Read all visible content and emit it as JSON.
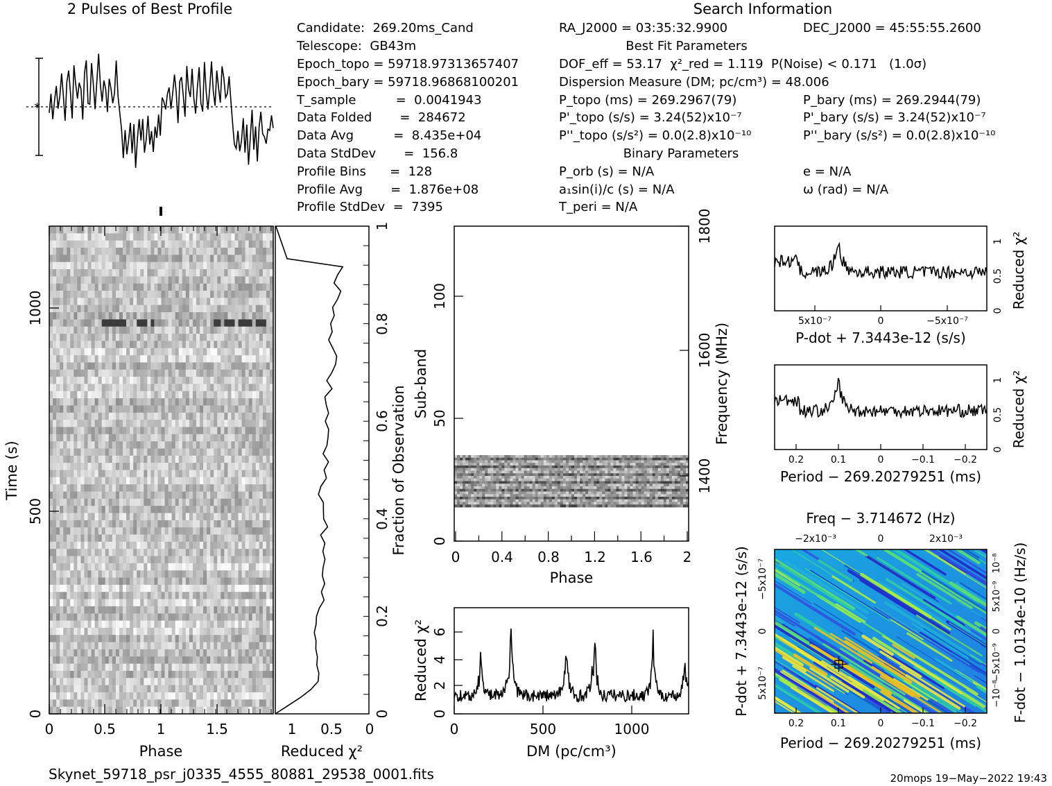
{
  "profile": {
    "title": "2 Pulses of Best Profile",
    "values": [
      0.05,
      0.12,
      -0.18,
      0.22,
      0.35,
      -0.05,
      0.28,
      0.6,
      0.15,
      -0.3,
      0.45,
      0.7,
      0.2,
      -0.15,
      0.9,
      0.4,
      0.1,
      0.65,
      0.3,
      -0.25,
      0.55,
      0.85,
      0.2,
      0.05,
      0.75,
      0.4,
      -0.1,
      0.5,
      0.95,
      0.3,
      0.15,
      0.6,
      0.25,
      -0.05,
      0.7,
      0.45,
      0.1,
      0.35,
      0.8,
      0.2,
      -0.2,
      -0.6,
      -0.9,
      -0.4,
      -1.0,
      -0.7,
      -0.3,
      -0.85,
      -0.5,
      -1.1,
      -0.6,
      -0.2,
      -0.75,
      -0.4,
      -0.95,
      -0.55,
      -0.15,
      -0.7,
      -0.45,
      -0.9,
      -0.35,
      -0.65,
      -0.2,
      -0.5
    ]
  },
  "info": {
    "search_title": "Search Information",
    "left_lines": [
      "Candidate:  269.20ms_Cand",
      "Telescope:  GB43m",
      "Epoch_topo = 59718.97313657407",
      "Epoch_bary = 59718.96868100201",
      "T_sample          =  0.0041943",
      "Data Folded       =  284672",
      "Data Avg          =  8.435e+04",
      "Data StdDev       =  156.8",
      "Profile Bins      =  128",
      "Profile Avg       =  1.876e+08",
      "Profile StdDev  =  7395"
    ],
    "ra": "RA_J2000 = 03:35:32.9900",
    "dec": "DEC_J2000 = 45:55:55.2600",
    "best_fit_title": "Best Fit Parameters",
    "dof_line": "DOF_eff = 53.17  χ²_red = 1.119  P(Noise) < 0.171   (1.0σ)",
    "dm_line": "Dispersion Measure (DM; pc/cm³) = 48.006",
    "p_topo": "P_topo (ms) =  269.2967(79)",
    "p_bary": "P_bary (ms) =  269.2944(79)",
    "pd_topo": "P'_topo (s/s) =  3.24(52)x10⁻⁷",
    "pd_bary": "P'_bary (s/s) =  3.24(52)x10⁻⁷",
    "pdd_topo": "P''_topo (s/s²) = 0.0(2.8)x10⁻¹⁰",
    "pdd_bary": "P''_bary (s/s²) = 0.0(2.8)x10⁻¹⁰",
    "binary_title": "Binary Parameters",
    "porb": "P_orb (s) = N/A",
    "a1sini": "a₁sin(i)/c (s) = N/A",
    "tperi": "T_peri = N/A",
    "ecc": "e = N/A",
    "omega": "ω (rad) = N/A"
  },
  "timephase": {
    "xlabel": "Phase",
    "ylabel": "Time (s)",
    "xticks": [
      "0",
      "0.5",
      "1",
      "1.5"
    ],
    "yticks": [
      "0",
      "500",
      "1000"
    ]
  },
  "time_chi": {
    "xlabel": "Reduced χ²",
    "ylabel": "Fraction of Observation",
    "xticks": [
      "1",
      "0.5",
      "0"
    ],
    "yticks": [
      "0",
      "0.2",
      "0.4",
      "0.6",
      "0.8",
      "1"
    ]
  },
  "subband": {
    "xlabel": "Phase",
    "ylabel": "Sub-band",
    "y2label": "Frequency (MHz)",
    "xticks": [
      "0",
      "0.4",
      "0.8",
      "1.2",
      "1.6",
      "2"
    ],
    "yticks": [
      "0",
      "50",
      "100"
    ],
    "y2ticks": [
      "1400",
      "1600",
      "1800"
    ]
  },
  "dm_panel": {
    "xlabel": "DM (pc/cm³)",
    "ylabel": "Reduced χ²",
    "xticks": [
      "0",
      "500",
      "1000"
    ],
    "yticks": [
      "0",
      "2",
      "4",
      "6"
    ]
  },
  "pdot_panel": {
    "xlabel": "P-dot + 7.3443e-12 (s/s)",
    "ylabel": "Reduced χ²",
    "xticks": [
      "5x10⁻⁷",
      "0",
      "−5x10⁻⁷"
    ],
    "yticks": [
      "0",
      "0.5",
      "1"
    ]
  },
  "period_panel": {
    "xlabel": "Period − 269.20279251 (ms)",
    "ylabel": "Reduced χ²",
    "xticks": [
      "0.2",
      "0.1",
      "0",
      "−0.1",
      "−0.2"
    ],
    "yticks": [
      "0",
      "0.5",
      "1"
    ]
  },
  "pp_panel": {
    "top_label": "Freq − 3.714672 (Hz)",
    "top_ticks": [
      "−2x10⁻³",
      "0",
      "2x10⁻³"
    ],
    "xlabel": "Period − 269.20279251 (ms)",
    "xticks": [
      "0.2",
      "0.1",
      "0",
      "−0.1",
      "−0.2"
    ],
    "ylabel": "P-dot + 7.3443e-12 (s/s)",
    "yticks": [
      "5x10⁻⁷",
      "0",
      "−5x10⁻⁷"
    ],
    "y2label": "F-dot − 1.0134e-10 (Hz/s)",
    "y2ticks": [
      "−10⁻⁸",
      "−5x10⁻⁹",
      "0",
      "5x10⁻⁹",
      "10⁻⁸"
    ]
  },
  "footer": {
    "filename": "Skynet_59718_psr_j0335_4555_80881_29538_0001.fits",
    "stamp": "20mops 19−May−2022 19:43"
  },
  "chart_data": [
    {
      "type": "line",
      "title": "2 Pulses of Best Profile",
      "note": "pulse profile, two cycles"
    },
    {
      "type": "heatmap",
      "xlabel": "Phase",
      "ylabel": "Time (s)",
      "xlim": [
        0,
        2
      ],
      "ylim": [
        0,
        1200
      ]
    },
    {
      "type": "line",
      "xlabel": "Reduced χ²",
      "ylabel": "Fraction of Observation",
      "xlim": [
        1,
        0
      ],
      "ylim": [
        0,
        1
      ]
    },
    {
      "type": "heatmap",
      "xlabel": "Phase",
      "ylabel": "Sub-band",
      "xlim": [
        0,
        2
      ],
      "ylim": [
        0,
        128
      ],
      "y2label": "Frequency (MHz)",
      "y2lim": [
        1290,
        1800
      ]
    },
    {
      "type": "line",
      "xlabel": "DM (pc/cm³)",
      "ylabel": "Reduced χ²",
      "xlim": [
        0,
        1320
      ],
      "ylim": [
        0,
        7.5
      ]
    },
    {
      "type": "line",
      "xlabel": "P-dot + 7.3443e-12 (s/s)",
      "ylabel": "Reduced χ²",
      "ylim": [
        0,
        1.2
      ]
    },
    {
      "type": "line",
      "xlabel": "Period − 269.20279251 (ms)",
      "ylabel": "Reduced χ²",
      "xlim": [
        0.24,
        -0.24
      ],
      "ylim": [
        0,
        1.2
      ]
    },
    {
      "type": "heatmap",
      "xlabel": "Period − 269.20279251 (ms)",
      "ylabel": "P-dot + 7.3443e-12 (s/s)",
      "xlim": [
        0.24,
        -0.24
      ]
    }
  ]
}
